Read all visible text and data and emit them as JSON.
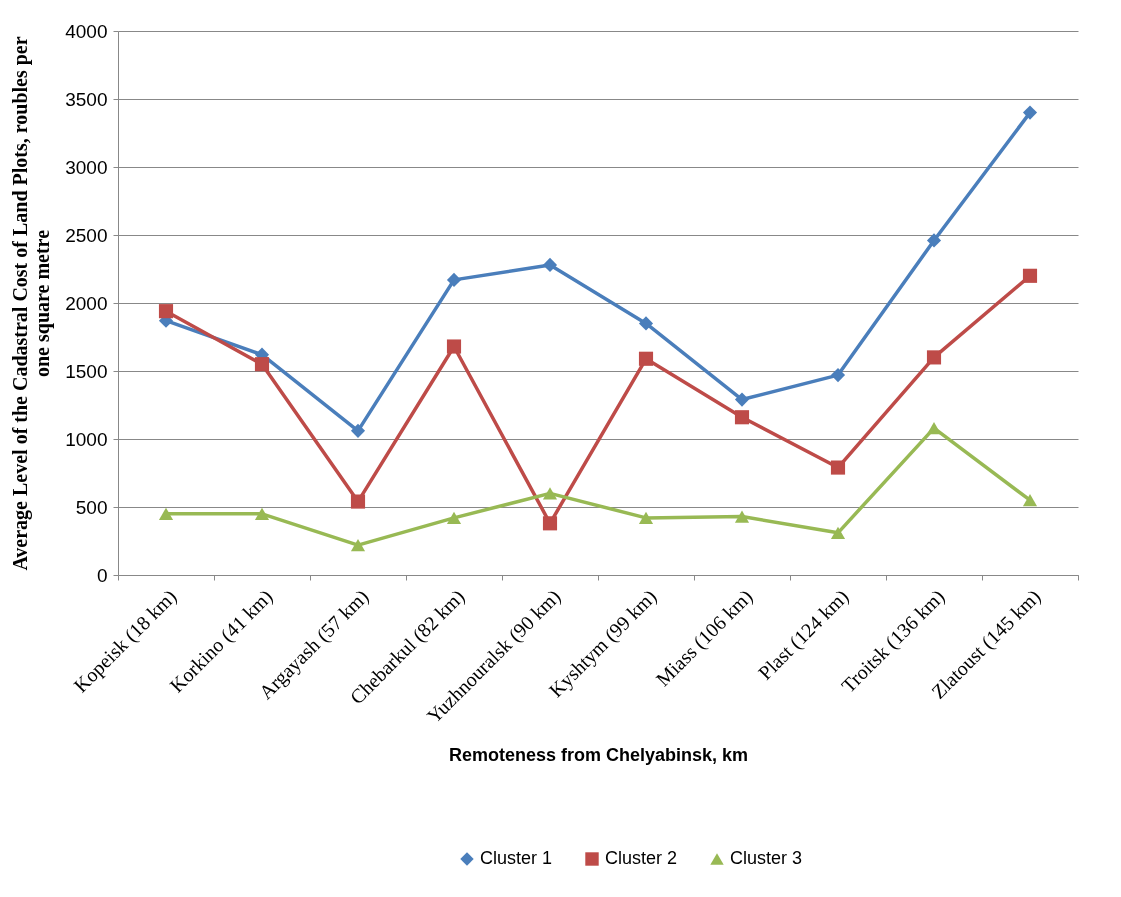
{
  "chart_data": {
    "type": "line",
    "xlabel": "Remoteness from Chelyabinsk, km",
    "ylabel": "Average Level of the Cadastral Cost of Land Plots, roubles per one square metre",
    "categories": [
      "Kopeisk (18 km)",
      "Korkino (41 km)",
      "Argayash (57 km)",
      "Chebarkul (82 km)",
      "Yuzhnouralsk (90 km)",
      "Kyshtym (99 km)",
      "Miass (106 km)",
      "Plast (124 km)",
      "Troitsk (136 km)",
      "Zlatoust (145 km)"
    ],
    "series": [
      {
        "name": "Cluster 1",
        "color": "#4a7ebb",
        "marker": "diamond",
        "values": [
          1870,
          1620,
          1060,
          2170,
          2280,
          1850,
          1290,
          1470,
          2460,
          3400
        ]
      },
      {
        "name": "Cluster 2",
        "color": "#be4b48",
        "marker": "square",
        "values": [
          1940,
          1550,
          540,
          1680,
          380,
          1590,
          1160,
          790,
          1600,
          2200
        ]
      },
      {
        "name": "Cluster 3",
        "color": "#98b954",
        "marker": "triangle",
        "values": [
          450,
          450,
          220,
          420,
          600,
          420,
          430,
          310,
          1080,
          550
        ]
      }
    ],
    "ylim": [
      0,
      4000
    ],
    "yticks": [
      0,
      500,
      1000,
      1500,
      2000,
      2500,
      3000,
      3500,
      4000
    ],
    "grid": "y",
    "legend": "bottom"
  }
}
